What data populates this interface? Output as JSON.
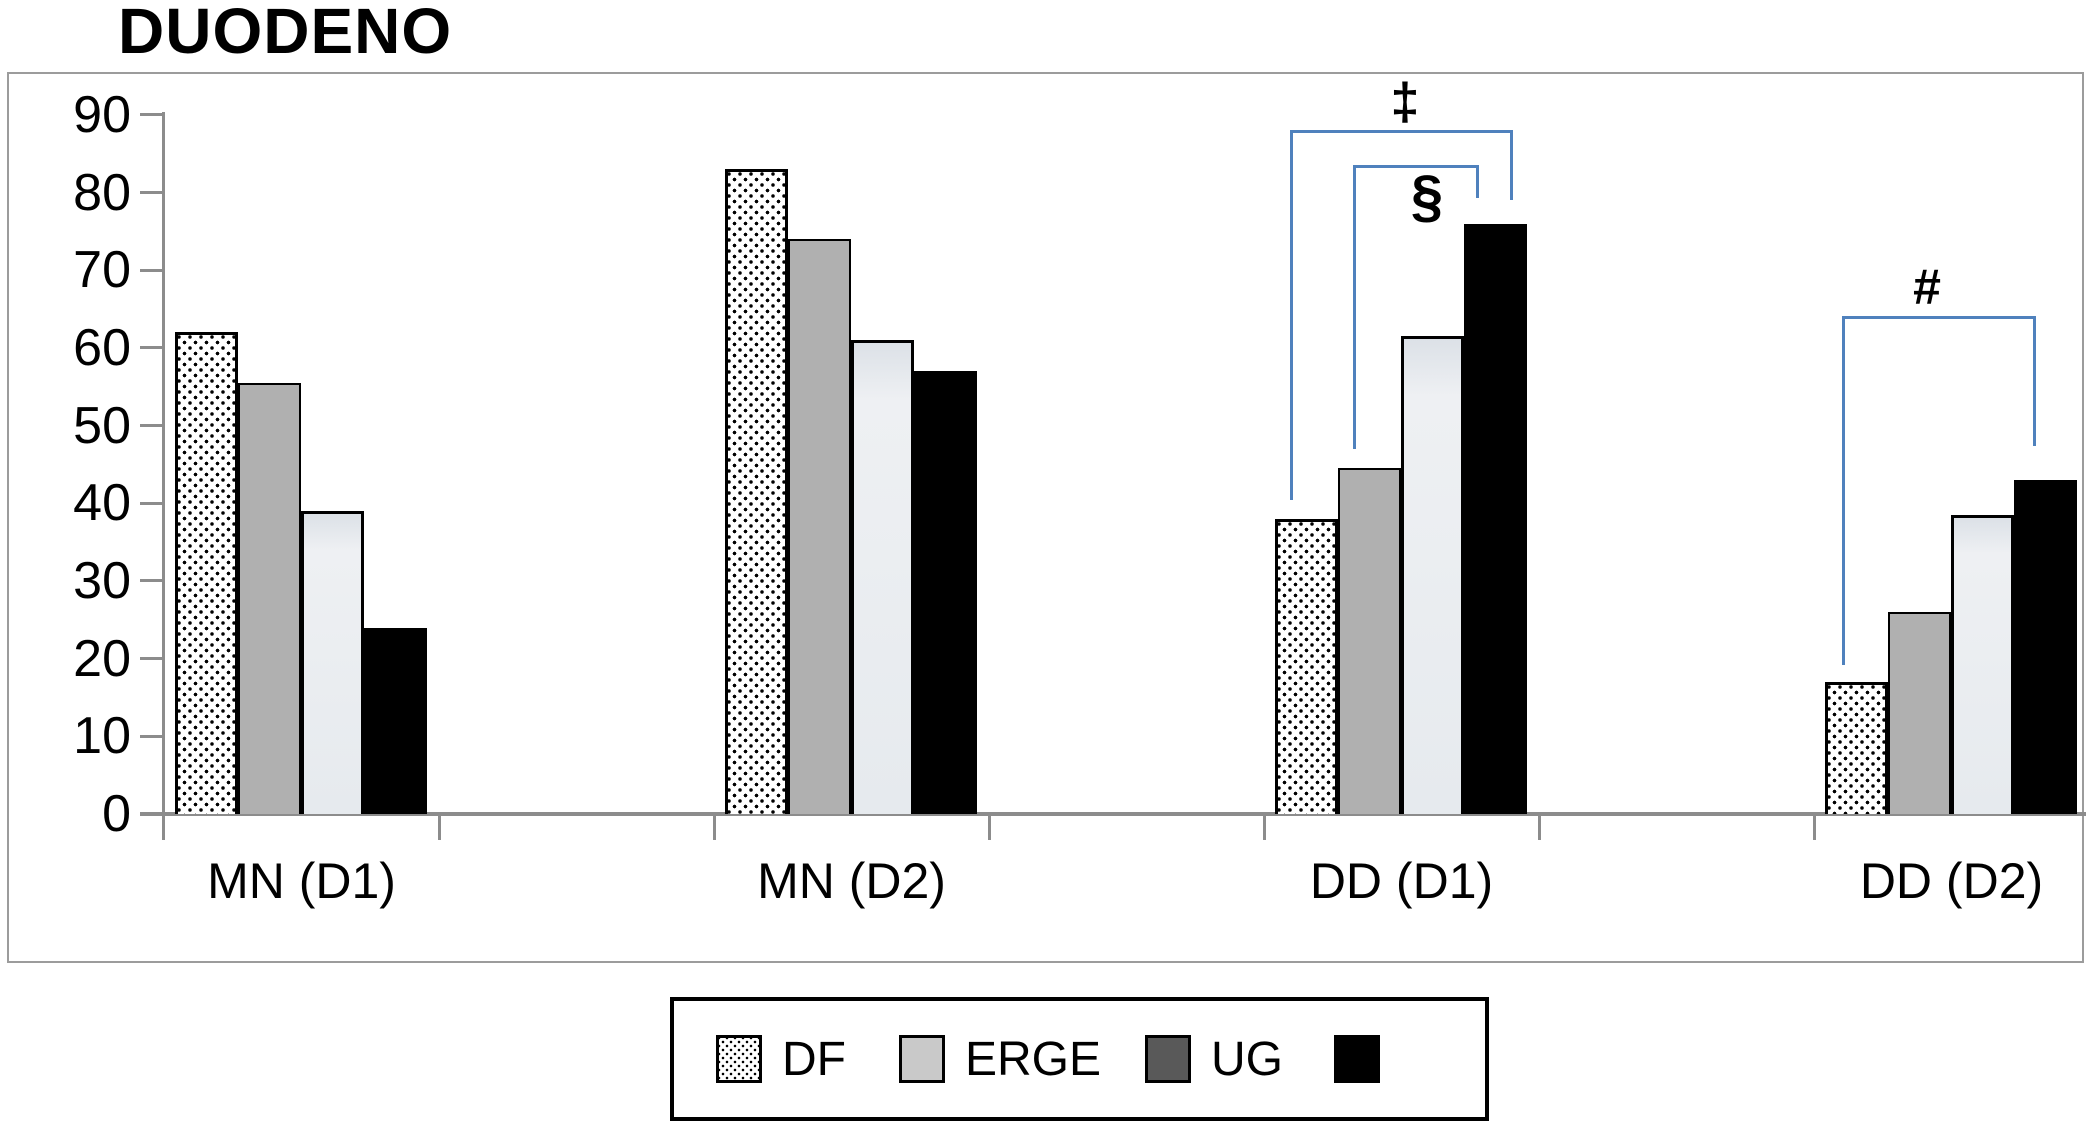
{
  "title": "DUODENO",
  "chart_data": {
    "type": "bar",
    "title": "DUODENO",
    "categories": [
      "MN (D1)",
      "MN (D2)",
      "DD (D1)",
      "DD (D2)"
    ],
    "series": [
      {
        "name": "DF",
        "style": "dotted",
        "values": [
          62,
          83,
          38,
          17
        ]
      },
      {
        "name": "ERGE",
        "style": "gray",
        "values": [
          55.5,
          74,
          44.5,
          26
        ]
      },
      {
        "name": "UG",
        "style": "light",
        "values": [
          39,
          61,
          61.5,
          38.5
        ]
      },
      {
        "name": "",
        "style": "black",
        "values": [
          24,
          57,
          76,
          43
        ]
      }
    ],
    "ylabel": "",
    "xlabel": "",
    "ylim": [
      0,
      90
    ],
    "yticks": [
      90,
      80,
      70,
      60,
      50,
      40,
      30,
      20,
      10,
      0
    ],
    "grid": false,
    "legend_position": "bottom",
    "annotations": [
      {
        "symbol": "‡",
        "group": "DD (D1)",
        "connects": [
          "DF",
          "black"
        ]
      },
      {
        "symbol": "§",
        "group": "DD (D1)",
        "connects": [
          "ERGE",
          "black"
        ]
      },
      {
        "symbol": "#",
        "group": "DD (D2)",
        "connects": [
          "DF",
          "black"
        ]
      }
    ]
  },
  "legend": {
    "items": [
      {
        "label": "DF",
        "swatch": "dotted"
      },
      {
        "label": "ERGE",
        "swatch": "gray-light"
      },
      {
        "label": "UG",
        "swatch": "gray-dark"
      },
      {
        "label": "",
        "swatch": "black"
      }
    ]
  },
  "colors": {
    "bracket_blue": "#4f81bd",
    "bar_gray": "#b0b0b0",
    "bar_light": "#e8ebee",
    "bar_black": "#000000",
    "legend_gray_light": "#c9c9c9",
    "legend_gray_dark": "#595959",
    "axis_gray": "#8c8c8c"
  }
}
